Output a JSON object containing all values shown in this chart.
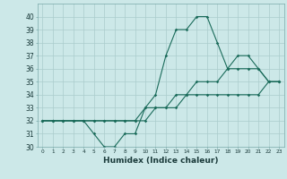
{
  "xlabel": "Humidex (Indice chaleur)",
  "x": [
    0,
    1,
    2,
    3,
    4,
    5,
    6,
    7,
    8,
    9,
    10,
    11,
    12,
    13,
    14,
    15,
    16,
    17,
    18,
    19,
    20,
    21,
    22,
    23
  ],
  "line1": [
    32,
    32,
    32,
    32,
    32,
    31,
    30,
    30,
    31,
    31,
    33,
    34,
    37,
    39,
    39,
    40,
    40,
    38,
    36,
    37,
    37,
    36,
    35,
    35
  ],
  "line2": [
    32,
    32,
    32,
    32,
    32,
    32,
    32,
    32,
    32,
    32,
    33,
    33,
    33,
    34,
    34,
    35,
    35,
    35,
    36,
    36,
    36,
    36,
    35,
    35
  ],
  "line3": [
    32,
    32,
    32,
    32,
    32,
    32,
    32,
    32,
    32,
    32,
    32,
    33,
    33,
    33,
    34,
    34,
    34,
    34,
    34,
    34,
    34,
    34,
    35,
    35
  ],
  "bg_color": "#cce8e8",
  "line_color": "#1a6b5a",
  "grid_color": "#aacccc",
  "ylim": [
    30,
    41
  ],
  "xlim": [
    -0.5,
    23.5
  ],
  "yticks": [
    30,
    31,
    32,
    33,
    34,
    35,
    36,
    37,
    38,
    39,
    40
  ]
}
